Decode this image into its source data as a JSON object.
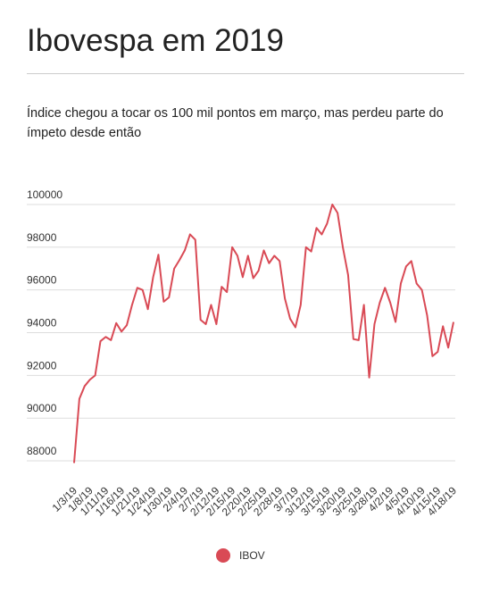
{
  "chart_data": {
    "type": "line",
    "title": "Ibovespa em 2019",
    "subtitle": "Índice chegou a tocar os 100 mil pontos em março, mas perdeu parte do ímpeto desde então",
    "categories": [
      "1/3/19",
      null,
      null,
      "1/8/19",
      null,
      null,
      "1/11/19",
      null,
      null,
      "1/16/19",
      null,
      null,
      "1/21/19",
      null,
      null,
      "1/24/19",
      null,
      null,
      "1/30/19",
      null,
      null,
      "2/4/19",
      null,
      null,
      "2/7/19",
      null,
      null,
      "2/12/19",
      null,
      null,
      "2/15/19",
      null,
      null,
      "2/20/19",
      null,
      null,
      "2/25/19",
      null,
      null,
      "2/28/19",
      null,
      null,
      "3/7/19",
      null,
      null,
      "3/12/19",
      null,
      null,
      "3/15/19",
      null,
      null,
      "3/20/19",
      null,
      null,
      "3/25/19",
      null,
      null,
      "3/28/19",
      null,
      null,
      "4/2/19",
      null,
      null,
      "4/5/19",
      null,
      null,
      "4/10/19",
      null,
      null,
      "4/15/19",
      null,
      null,
      "4/18/19"
    ],
    "series": [
      {
        "name": "IBOV",
        "color": "#d94a55",
        "values": [
          87900,
          90900,
          91500,
          91800,
          92000,
          93600,
          93800,
          93650,
          94450,
          94050,
          94350,
          95300,
          96100,
          96000,
          95100,
          96600,
          97650,
          95450,
          95650,
          97000,
          97400,
          97850,
          98600,
          98350,
          94600,
          94400,
          95300,
          94400,
          96150,
          95900,
          98000,
          97600,
          96600,
          97600,
          96550,
          96900,
          97850,
          97250,
          97600,
          97350,
          95600,
          94650,
          94250,
          95300,
          98000,
          97800,
          98900,
          98600,
          99100,
          100000,
          99600,
          98000,
          96700,
          93700,
          93650,
          95300,
          91900,
          94400,
          95400,
          96100,
          95400,
          94500,
          96300,
          97100,
          97350,
          96300,
          96000,
          94800,
          92900,
          93100,
          94300,
          93300,
          94500
        ]
      }
    ],
    "ylim": [
      87500,
      100500
    ],
    "yticks": [
      88000,
      90000,
      92000,
      94000,
      96000,
      98000,
      100000
    ],
    "grid": true,
    "legend": "bottom"
  }
}
